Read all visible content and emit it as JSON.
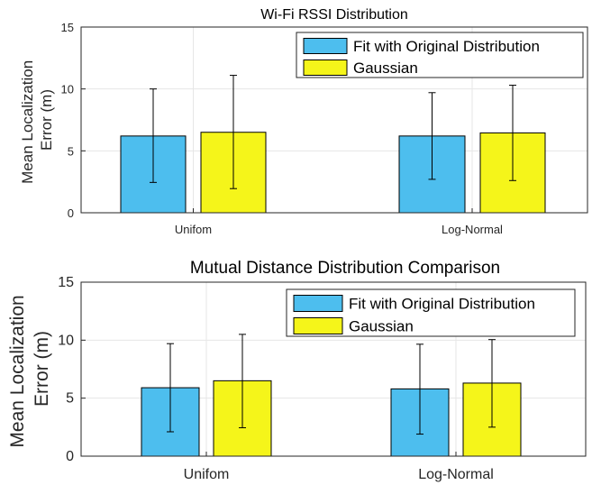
{
  "chart_data": [
    {
      "type": "bar",
      "title": "Wi-Fi RSSI Distribution",
      "xlabel": "",
      "ylabel": "Mean Localization Error (m)",
      "ylabel_lines": [
        "Mean Localization",
        "Error (m)"
      ],
      "categories": [
        "Unifom",
        "Log-Normal"
      ],
      "ylim": [
        0,
        15
      ],
      "yticks": [
        0,
        5,
        10,
        15
      ],
      "grid": true,
      "legend_position": "top-right",
      "series": [
        {
          "name": "Fit with Original Distribution",
          "color": "#4DBEEE",
          "values": [
            6.2,
            6.2
          ],
          "err_low": [
            2.45,
            2.7
          ],
          "err_high": [
            10.0,
            9.7
          ]
        },
        {
          "name": "Gaussian",
          "color": "#F5F51A",
          "values": [
            6.5,
            6.45
          ],
          "err_low": [
            1.95,
            2.6
          ],
          "err_high": [
            11.1,
            10.3
          ]
        }
      ]
    },
    {
      "type": "bar",
      "title": "Mutual Distance Distribution Comparison",
      "xlabel": "",
      "ylabel": "Mean Localization Error (m)",
      "ylabel_lines": [
        "Mean Localization",
        "Error (m)"
      ],
      "categories": [
        "Unifom",
        "Log-Normal"
      ],
      "ylim": [
        0,
        15
      ],
      "yticks": [
        0,
        5,
        10,
        15
      ],
      "grid": true,
      "legend_position": "top-right",
      "series": [
        {
          "name": "Fit with Original Distribution",
          "color": "#4DBEEE",
          "values": [
            5.9,
            5.8
          ],
          "err_low": [
            2.1,
            1.9
          ],
          "err_high": [
            9.7,
            9.65
          ]
        },
        {
          "name": "Gaussian",
          "color": "#F5F51A",
          "values": [
            6.5,
            6.3
          ],
          "err_low": [
            2.45,
            2.5
          ],
          "err_high": [
            10.5,
            10.05
          ]
        }
      ]
    }
  ]
}
